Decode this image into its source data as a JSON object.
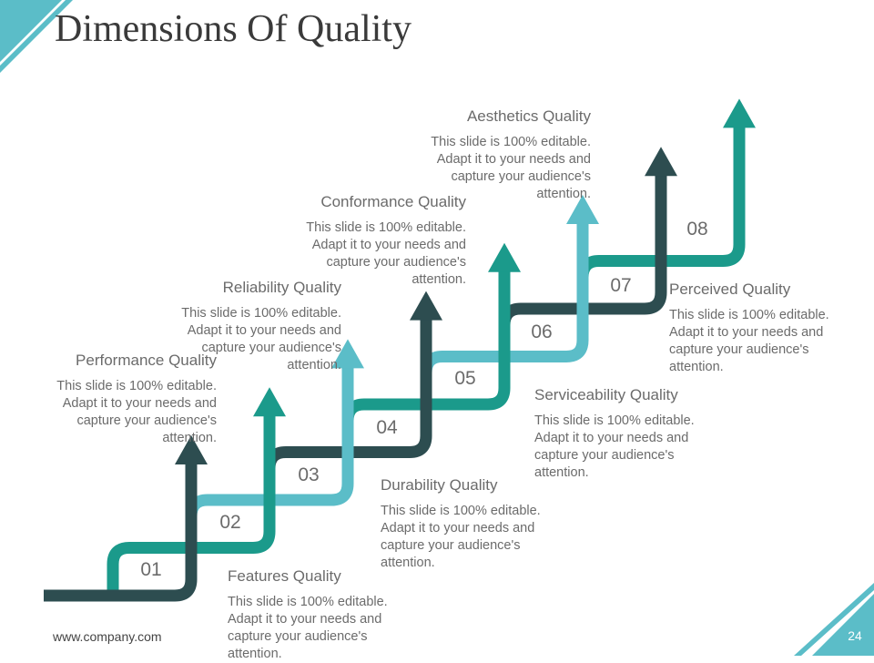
{
  "title": "Dimensions Of Quality",
  "colors": {
    "dark": "#2d4d50",
    "teal": "#1b9a8b",
    "light": "#5bbdc8",
    "accent": "#5bbdc8"
  },
  "steps": [
    {
      "number": "01",
      "heading": "Performance Quality",
      "text": "This slide is 100% editable. Adapt it to your needs and capture your audience's attention."
    },
    {
      "number": "02",
      "heading": "Features Quality",
      "text": "This slide is 100% editable. Adapt it to your needs and capture your audience's attention."
    },
    {
      "number": "03",
      "heading": "Reliability Quality",
      "text": "This slide is 100% editable. Adapt it to your needs and capture your audience's attention."
    },
    {
      "number": "04",
      "heading": "Durability Quality",
      "text": "This slide is 100% editable. Adapt it to your needs and capture your audience's attention."
    },
    {
      "number": "05",
      "heading": "Conformance Quality",
      "text": "This slide is 100% editable. Adapt it to your needs and capture your audience's attention."
    },
    {
      "number": "06",
      "heading": "Serviceability Quality",
      "text": "This slide is 100% editable. Adapt it to your needs and capture your audience's attention."
    },
    {
      "number": "07",
      "heading": "Aesthetics Quality",
      "text": "This slide is 100% editable. Adapt it to your needs and capture your audience's attention."
    },
    {
      "number": "08",
      "heading": "Perceived Quality",
      "text": "This slide is 100% editable. Adapt it to your needs and capture your audience's attention."
    }
  ],
  "footer": {
    "website": "www.company.com",
    "page_number": "24"
  }
}
